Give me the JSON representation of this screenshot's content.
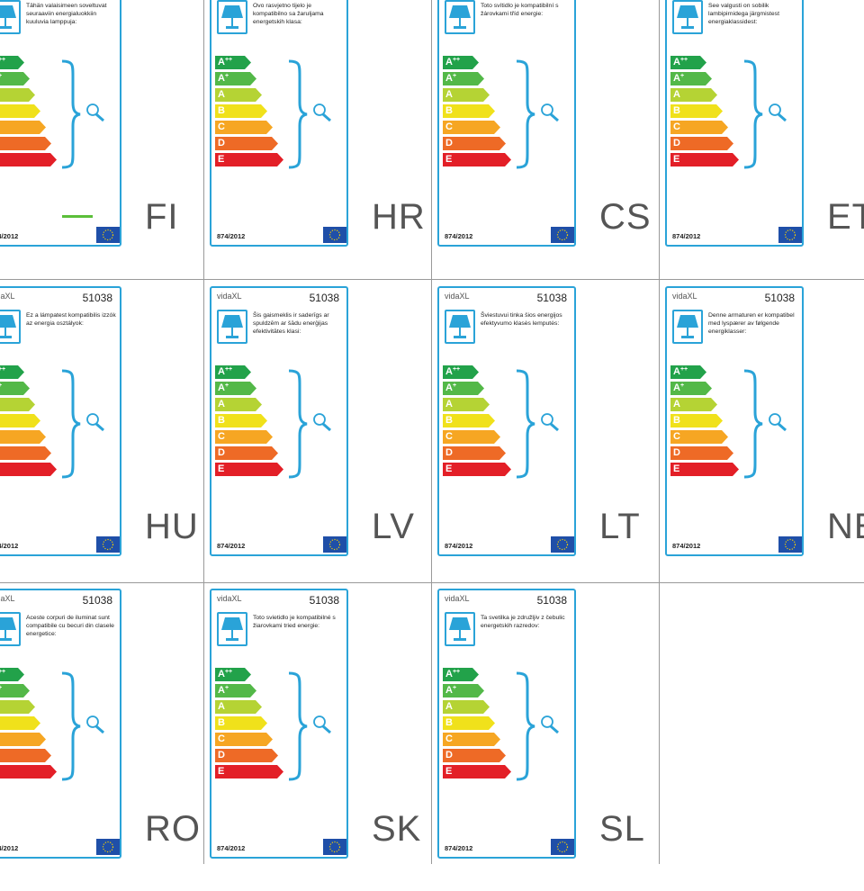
{
  "brand": "vidaXL",
  "product_code": "51038",
  "regulation": "874/2012",
  "classes": [
    {
      "letter": "A",
      "sup": "++",
      "color": "#22a24a"
    },
    {
      "letter": "A",
      "sup": "+",
      "color": "#53b848"
    },
    {
      "letter": "A",
      "sup": "",
      "color": "#b5d334"
    },
    {
      "letter": "B",
      "sup": "",
      "color": "#f0e11b"
    },
    {
      "letter": "C",
      "sup": "",
      "color": "#f6a623"
    },
    {
      "letter": "D",
      "sup": "",
      "color": "#ee6a26"
    },
    {
      "letter": "E",
      "sup": "",
      "color": "#e31f27"
    }
  ],
  "labels": [
    {
      "lang": "FI",
      "text": "Tähän valaisimeen soveltuvat seuraaviin energialuokkiin kuuluvia lamppuja:"
    },
    {
      "lang": "HR",
      "text": "Ovo rasvjetno tijelo je kompatibilno sa žaruljama energetskih klasa:"
    },
    {
      "lang": "CS",
      "text": "Toto svítidlo je kompatibilní s žárovkami tříd energie:"
    },
    {
      "lang": "ET",
      "text": "See valgusti on sobilik lambipirnidega järgmistest energiaklassidest:"
    },
    {
      "lang": "HU",
      "text": "Ez a lámpatest kompatibilis izzók az energia osztályok:"
    },
    {
      "lang": "LV",
      "text": "Šis gaismeklis ir saderīgs ar spuldzēm ar šādu enerģijas efektivitātes klasi:"
    },
    {
      "lang": "LT",
      "text": "Šviestuvui tinka šios energijos efektyvumo klasės lemputės:"
    },
    {
      "lang": "NE",
      "text": "Denne armaturen er kompatibel med lyspærer av følgende energiklasser:"
    },
    {
      "lang": "RO",
      "text": "Aceste corpuri de iluminat sunt compatibile cu becuri din clasele energetice:"
    },
    {
      "lang": "SK",
      "text": "Toto svietidlo je kompatibilné s žiarovkami tried energie:"
    },
    {
      "lang": "SL",
      "text": "Ta svetilka je združljiv z čebulic energetskih razredov:"
    }
  ]
}
